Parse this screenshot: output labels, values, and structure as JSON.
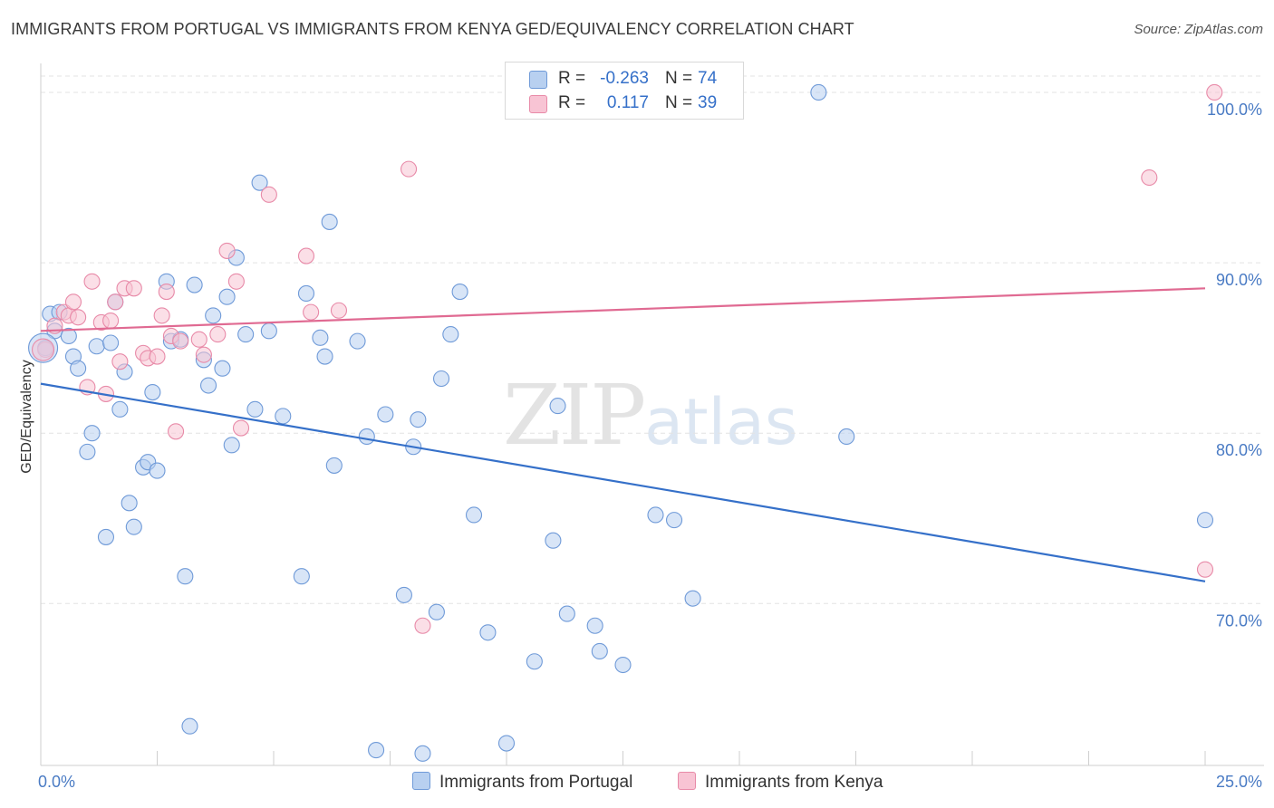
{
  "title": "IMMIGRANTS FROM PORTUGAL VS IMMIGRANTS FROM KENYA GED/EQUIVALENCY CORRELATION CHART",
  "source": "Source: ZipAtlas.com",
  "watermark": {
    "zip": "ZIP",
    "atlas": "atlas"
  },
  "legend": {
    "portugal": {
      "r_label": "R =",
      "r_value": "-0.263",
      "n_label": "N =",
      "n_value": "74"
    },
    "kenya": {
      "r_label": "R =",
      "r_value": "0.117",
      "n_label": "N =",
      "n_value": "39"
    }
  },
  "colors": {
    "portugal_fill": "#b8d0f0",
    "portugal_stroke": "#6f9ad8",
    "portugal_line": "#3570c9",
    "kenya_fill": "#f8c4d4",
    "kenya_stroke": "#e88aa8",
    "kenya_line": "#e06a92",
    "grid": "#e3e3e3",
    "tick_text": "#4a7bc4"
  },
  "chart_data": {
    "type": "scatter",
    "title": "IMMIGRANTS FROM PORTUGAL VS IMMIGRANTS FROM KENYA GED/EQUIVALENCY CORRELATION CHART",
    "xlabel": "",
    "ylabel": "GED/Equivalency",
    "xlim": [
      0,
      25
    ],
    "ylim": [
      60.5,
      101.7
    ],
    "x_ticks": [
      "0.0%",
      "25.0%"
    ],
    "y_ticks": [
      {
        "value": 70,
        "label": "70.0%"
      },
      {
        "value": 80,
        "label": "80.0%"
      },
      {
        "value": 90,
        "label": "90.0%"
      },
      {
        "value": 100,
        "label": "100.0%"
      }
    ],
    "grid": true,
    "legend_position": "top-center",
    "series": [
      {
        "name": "Immigrants from Portugal",
        "points": [
          [
            0.1,
            85.0
          ],
          [
            0.2,
            87.0
          ],
          [
            0.3,
            86.0
          ],
          [
            0.4,
            87.1
          ],
          [
            0.6,
            85.7
          ],
          [
            0.7,
            84.5
          ],
          [
            0.8,
            83.8
          ],
          [
            1.0,
            78.9
          ],
          [
            1.1,
            80.0
          ],
          [
            1.2,
            85.1
          ],
          [
            1.4,
            73.9
          ],
          [
            1.5,
            85.3
          ],
          [
            1.6,
            87.7
          ],
          [
            1.7,
            81.4
          ],
          [
            1.8,
            83.6
          ],
          [
            1.9,
            75.9
          ],
          [
            2.0,
            74.5
          ],
          [
            2.2,
            78.0
          ],
          [
            2.3,
            78.3
          ],
          [
            2.4,
            82.4
          ],
          [
            2.5,
            77.8
          ],
          [
            2.7,
            88.9
          ],
          [
            2.8,
            85.4
          ],
          [
            3.0,
            85.5
          ],
          [
            3.1,
            71.6
          ],
          [
            3.2,
            62.8
          ],
          [
            3.3,
            88.7
          ],
          [
            3.5,
            84.3
          ],
          [
            3.6,
            82.8
          ],
          [
            3.7,
            86.9
          ],
          [
            3.9,
            83.8
          ],
          [
            4.0,
            88.0
          ],
          [
            4.1,
            79.3
          ],
          [
            4.2,
            90.3
          ],
          [
            4.4,
            85.8
          ],
          [
            4.6,
            81.4
          ],
          [
            4.7,
            94.7
          ],
          [
            4.9,
            86.0
          ],
          [
            5.2,
            81.0
          ],
          [
            5.6,
            71.6
          ],
          [
            5.7,
            88.2
          ],
          [
            6.0,
            85.6
          ],
          [
            6.1,
            84.5
          ],
          [
            6.2,
            92.4
          ],
          [
            6.3,
            78.1
          ],
          [
            6.8,
            85.4
          ],
          [
            7.0,
            79.8
          ],
          [
            7.2,
            61.4
          ],
          [
            7.4,
            81.1
          ],
          [
            7.8,
            70.5
          ],
          [
            8.0,
            79.2
          ],
          [
            8.1,
            80.8
          ],
          [
            8.2,
            61.2
          ],
          [
            8.5,
            69.5
          ],
          [
            8.6,
            83.2
          ],
          [
            8.8,
            85.8
          ],
          [
            9.0,
            88.3
          ],
          [
            9.3,
            75.2
          ],
          [
            9.6,
            68.3
          ],
          [
            10.0,
            61.8
          ],
          [
            10.6,
            66.6
          ],
          [
            11.0,
            73.7
          ],
          [
            11.1,
            81.6
          ],
          [
            11.3,
            69.4
          ],
          [
            11.9,
            68.7
          ],
          [
            12.0,
            67.2
          ],
          [
            12.5,
            66.4
          ],
          [
            13.2,
            75.2
          ],
          [
            13.6,
            74.9
          ],
          [
            14.0,
            70.3
          ],
          [
            13.9,
            100.0
          ],
          [
            16.7,
            100.0
          ],
          [
            17.3,
            79.8
          ],
          [
            25.0,
            74.9
          ]
        ]
      },
      {
        "name": "Immigrants from Kenya",
        "points": [
          [
            0.1,
            84.9
          ],
          [
            0.3,
            86.3
          ],
          [
            0.5,
            87.1
          ],
          [
            0.6,
            86.9
          ],
          [
            0.7,
            87.7
          ],
          [
            0.8,
            86.8
          ],
          [
            1.0,
            82.7
          ],
          [
            1.1,
            88.9
          ],
          [
            1.3,
            86.5
          ],
          [
            1.4,
            82.3
          ],
          [
            1.5,
            86.6
          ],
          [
            1.6,
            87.7
          ],
          [
            1.7,
            84.2
          ],
          [
            1.8,
            88.5
          ],
          [
            2.0,
            88.5
          ],
          [
            2.2,
            84.7
          ],
          [
            2.3,
            84.4
          ],
          [
            2.5,
            84.5
          ],
          [
            2.6,
            86.9
          ],
          [
            2.7,
            88.3
          ],
          [
            2.8,
            85.7
          ],
          [
            2.9,
            80.1
          ],
          [
            3.0,
            85.4
          ],
          [
            3.4,
            85.5
          ],
          [
            3.5,
            84.6
          ],
          [
            3.8,
            85.8
          ],
          [
            4.0,
            90.7
          ],
          [
            4.2,
            88.9
          ],
          [
            4.3,
            80.3
          ],
          [
            4.9,
            94.0
          ],
          [
            5.7,
            90.4
          ],
          [
            5.8,
            87.1
          ],
          [
            6.4,
            87.2
          ],
          [
            7.9,
            95.5
          ],
          [
            8.2,
            68.7
          ],
          [
            13.6,
            100.0
          ],
          [
            23.8,
            95.0
          ],
          [
            25.0,
            72.0
          ],
          [
            25.2,
            100.0
          ]
        ]
      }
    ],
    "trendlines": [
      {
        "series": "Immigrants from Portugal",
        "x": [
          0,
          25
        ],
        "y": [
          82.9,
          71.3
        ]
      },
      {
        "series": "Immigrants from Kenya",
        "x": [
          0,
          25
        ],
        "y": [
          86.0,
          88.5
        ]
      }
    ]
  }
}
